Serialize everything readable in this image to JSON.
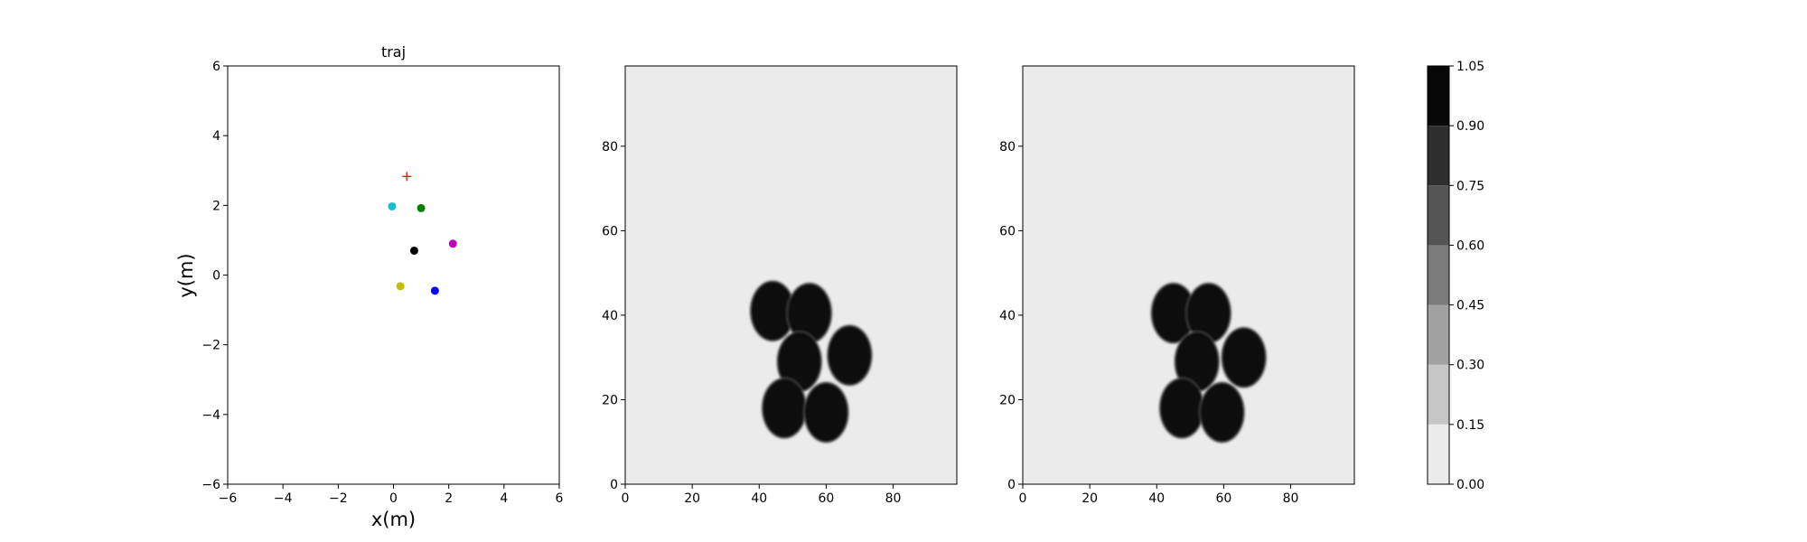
{
  "chart_data": [
    {
      "type": "scatter",
      "title": "traj",
      "xlabel": "x(m)",
      "ylabel": "y(m)",
      "xlim": [
        -6,
        6
      ],
      "ylim": [
        -6,
        6
      ],
      "xticks": [
        "−6",
        "−4",
        "−2",
        "0",
        "2",
        "4",
        "6"
      ],
      "yticks": [
        "−6",
        "−4",
        "−2",
        "0",
        "2",
        "4",
        "6"
      ],
      "points": [
        {
          "x": -0.05,
          "y": 1.97,
          "color": "#17becf",
          "marker": "circle"
        },
        {
          "x": 1.0,
          "y": 1.92,
          "color": "#008000",
          "marker": "circle"
        },
        {
          "x": 2.15,
          "y": 0.9,
          "color": "#c000c0",
          "marker": "circle"
        },
        {
          "x": 0.75,
          "y": 0.7,
          "color": "#000000",
          "marker": "circle"
        },
        {
          "x": 0.25,
          "y": -0.32,
          "color": "#bfbf00",
          "marker": "circle"
        },
        {
          "x": 1.5,
          "y": -0.45,
          "color": "#0000ff",
          "marker": "circle"
        },
        {
          "x": 0.48,
          "y": 2.83,
          "color": "#ff0000",
          "marker": "plus"
        }
      ],
      "grid": false
    },
    {
      "type": "heatmap",
      "xlim": [
        0,
        99
      ],
      "ylim": [
        0,
        99
      ],
      "xticks": [
        "0",
        "20",
        "40",
        "60",
        "80"
      ],
      "yticks": [
        "0",
        "20",
        "40",
        "60",
        "80"
      ],
      "background_value": 0.0,
      "blobs": [
        {
          "x": 44,
          "y": 41,
          "value": 1.05
        },
        {
          "x": 55,
          "y": 40.5,
          "value": 1.05
        },
        {
          "x": 67,
          "y": 30.5,
          "value": 1.05
        },
        {
          "x": 52,
          "y": 29,
          "value": 1.05
        },
        {
          "x": 47.5,
          "y": 18,
          "value": 1.05
        },
        {
          "x": 60,
          "y": 17,
          "value": 1.05
        }
      ]
    },
    {
      "type": "heatmap",
      "xlim": [
        0,
        99
      ],
      "ylim": [
        0,
        99
      ],
      "xticks": [
        "0",
        "20",
        "40",
        "60",
        "80"
      ],
      "yticks": [
        "0",
        "20",
        "40",
        "60",
        "80"
      ],
      "background_value": 0.0,
      "blobs": [
        {
          "x": 45,
          "y": 40.5,
          "value": 1.05
        },
        {
          "x": 55.5,
          "y": 40.5,
          "value": 1.05
        },
        {
          "x": 66,
          "y": 30,
          "value": 1.05
        },
        {
          "x": 52,
          "y": 29,
          "value": 0.9
        },
        {
          "x": 47.5,
          "y": 18,
          "value": 1.05
        },
        {
          "x": 59.5,
          "y": 17,
          "value": 1.05
        }
      ]
    }
  ],
  "colorbar": {
    "levels": [
      0.0,
      0.15,
      0.3,
      0.45,
      0.6,
      0.75,
      0.9,
      1.05
    ],
    "labels": [
      "0.00",
      "0.15",
      "0.30",
      "0.45",
      "0.60",
      "0.75",
      "0.90",
      "1.05"
    ],
    "colors": [
      "#ebebeb",
      "#c6c6c6",
      "#a1a1a1",
      "#7b7b7b",
      "#555555",
      "#2e2e2e",
      "#080808"
    ]
  }
}
